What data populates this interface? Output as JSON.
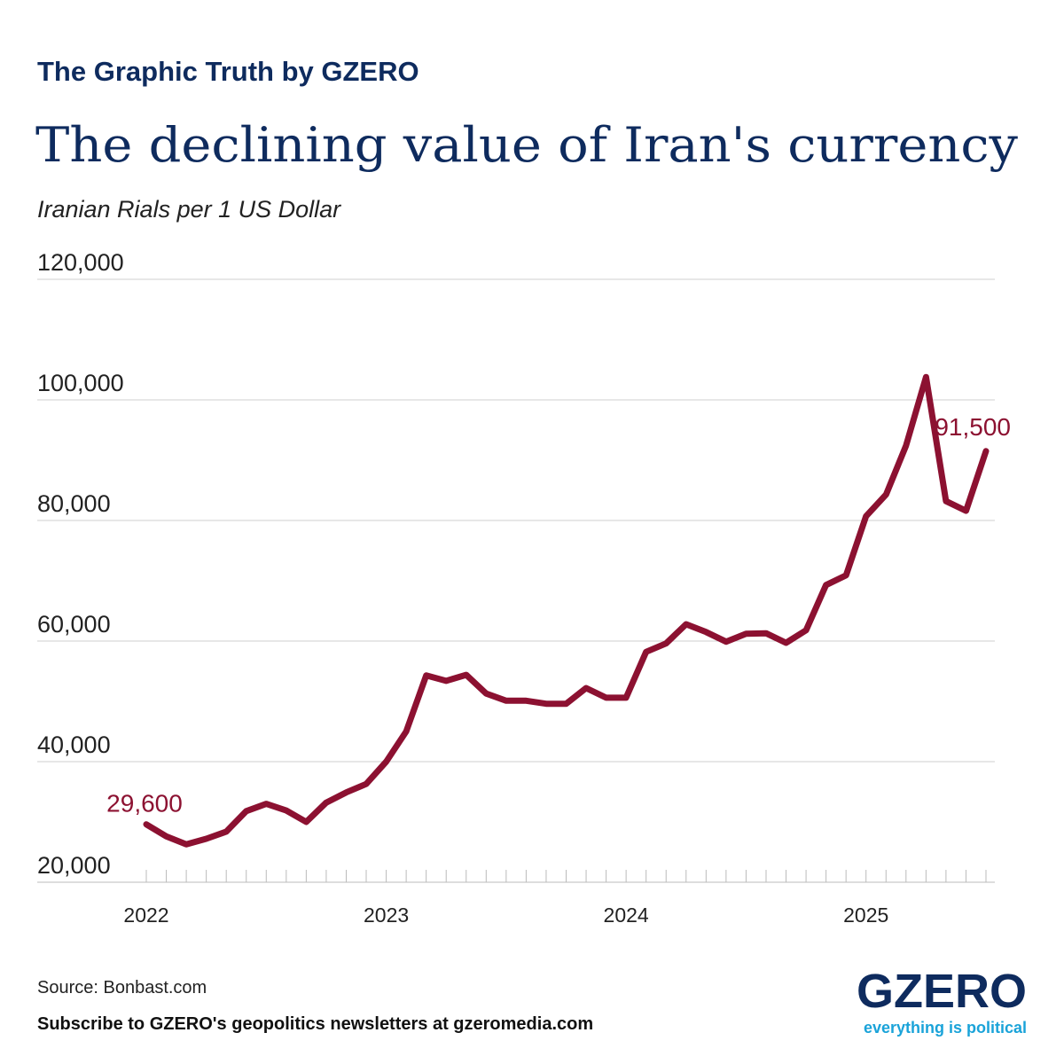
{
  "chart_data": {
    "type": "line",
    "brand": "The Graphic Truth by GZERO",
    "title": "The declining value of Iran's currency",
    "subtitle": "Iranian Rials per 1 US Dollar",
    "source": "Source: Bonbast.com",
    "note": "Subscribe to GZERO's geopolitics newsletters at gzeromedia.com",
    "logo": "GZERO",
    "tagline": "everything is political",
    "color": "#8c1131",
    "categories": [
      "2022",
      null,
      null,
      null,
      null,
      null,
      null,
      null,
      null,
      null,
      null,
      null,
      "2023",
      null,
      null,
      null,
      null,
      null,
      null,
      null,
      null,
      null,
      null,
      null,
      "2024",
      null,
      null,
      null,
      null,
      null,
      null,
      null,
      null,
      null,
      null,
      null,
      "2025",
      null,
      null,
      null,
      null,
      null,
      null
    ],
    "values": [
      29600,
      27600,
      26300,
      27200,
      28400,
      31800,
      33000,
      31900,
      30000,
      33200,
      34900,
      36300,
      40000,
      45000,
      54300,
      53400,
      54400,
      51300,
      50100,
      50100,
      49600,
      49600,
      52200,
      50600,
      50600,
      58200,
      59600,
      62800,
      61500,
      59900,
      61200,
      61300,
      59700,
      61800,
      69300,
      70900,
      80700,
      84300,
      92400,
      103800,
      83200,
      81600,
      91500
    ],
    "value_labels": [
      "29,600",
      null,
      null,
      null,
      null,
      null,
      null,
      null,
      null,
      null,
      null,
      null,
      null,
      null,
      null,
      null,
      null,
      null,
      null,
      null,
      null,
      null,
      null,
      null,
      null,
      null,
      null,
      null,
      null,
      null,
      null,
      null,
      null,
      null,
      null,
      null,
      null,
      null,
      null,
      null,
      null,
      null,
      "91,500"
    ],
    "ylim": [
      20000,
      120000
    ],
    "yticks": [
      {
        "value": 20000,
        "label": "20,000"
      },
      {
        "value": 40000,
        "label": "40,000"
      },
      {
        "value": 60000,
        "label": "60,000"
      },
      {
        "value": 80000,
        "label": "80,000"
      },
      {
        "value": 100000,
        "label": "100,000"
      },
      {
        "value": 120000,
        "label": "120,000"
      }
    ],
    "grid": true
  }
}
